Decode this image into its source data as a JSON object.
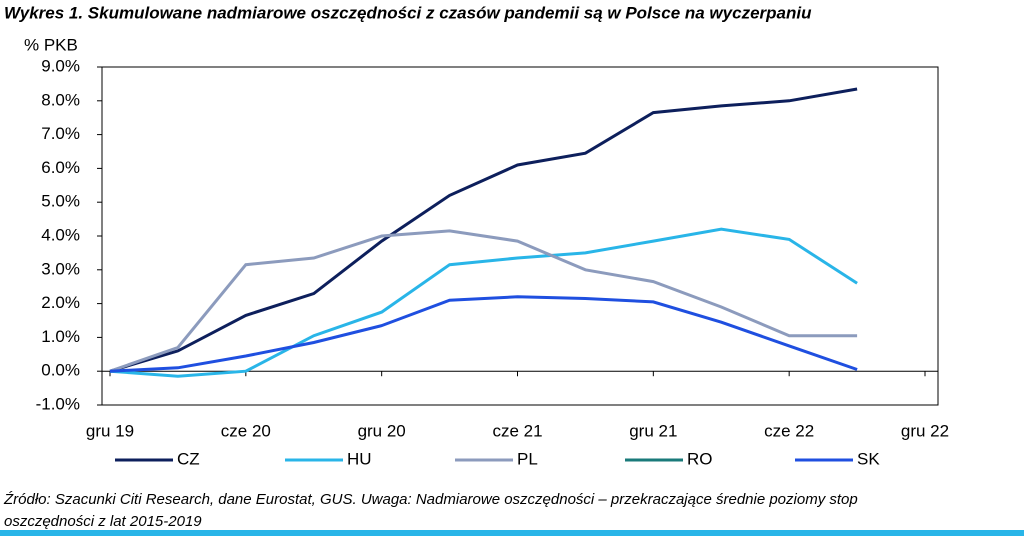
{
  "chart_data": {
    "type": "line",
    "title": "Wykres 1. Skumulowane nadmiarowe oszczędności z czasów pandemii są w Polsce na wyczerpaniu",
    "y_label": "% PKB",
    "categories": [
      "gru 19",
      null,
      "cze 20",
      null,
      "gru 20",
      null,
      "cze 21",
      null,
      "gru 21",
      null,
      "cze 22",
      null,
      "gru 22"
    ],
    "series": [
      {
        "name": "CZ",
        "color": "#0d1f5c",
        "values": [
          0,
          0.6,
          1.65,
          2.3,
          3.85,
          5.2,
          6.1,
          6.45,
          7.65,
          7.85,
          8.0,
          8.35,
          null
        ]
      },
      {
        "name": "HU",
        "color": "#29b5e8",
        "values": [
          0,
          -0.15,
          0,
          1.05,
          1.75,
          3.15,
          3.35,
          3.5,
          3.85,
          4.2,
          3.9,
          2.6,
          null
        ]
      },
      {
        "name": "PL",
        "color": "#8c9bbd",
        "values": [
          0,
          0.7,
          3.15,
          3.35,
          4.0,
          4.15,
          3.85,
          3.0,
          2.65,
          1.9,
          1.05,
          1.05,
          null
        ]
      },
      {
        "name": "RO",
        "color": "#1a7a7a",
        "values": [
          null,
          null,
          null,
          null,
          null,
          null,
          null,
          null,
          null,
          null,
          null,
          null,
          null
        ]
      },
      {
        "name": "SK",
        "color": "#1f4fe0",
        "values": [
          0,
          0.1,
          0.45,
          0.85,
          1.35,
          2.1,
          2.2,
          2.15,
          2.05,
          1.45,
          0.75,
          0.05,
          null
        ]
      }
    ],
    "ylim": [
      -1,
      9
    ],
    "yticks": [
      {
        "value": -1,
        "label": "-1.0%"
      },
      {
        "value": 0,
        "label": "0.0%"
      },
      {
        "value": 1,
        "label": "1.0%"
      },
      {
        "value": 2,
        "label": "2.0%"
      },
      {
        "value": 3,
        "label": "3.0%"
      },
      {
        "value": 4,
        "label": "4.0%"
      },
      {
        "value": 5,
        "label": "5.0%"
      },
      {
        "value": 6,
        "label": "6.0%"
      },
      {
        "value": 7,
        "label": "7.0%"
      },
      {
        "value": 8,
        "label": "8.0%"
      },
      {
        "value": 9,
        "label": "9.0%"
      }
    ],
    "legend": "bottom",
    "source": [
      "Źródło: Szacunki Citi Research, dane Eurostat, GUS. Uwaga: Nadmiarowe oszczędności – przekraczające średnie poziomy stop",
      "oszczędności z lat 2015-2019"
    ]
  }
}
